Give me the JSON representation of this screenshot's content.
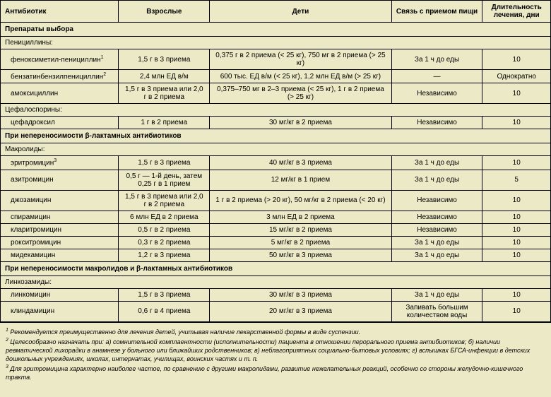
{
  "headers": {
    "antibiotic": "Антибиотик",
    "adults": "Взрослые",
    "children": "Дети",
    "food": "Связь с приемом пищи",
    "duration": "Длительность лечения, дни"
  },
  "sections": [
    {
      "title": "Препараты выбора",
      "groups": [
        {
          "name": "Пенициллины:",
          "rows": [
            {
              "name": "феноксиметил-пенициллин",
              "sup": "1",
              "adults": "1,5 г в 3 приема",
              "children": "0,375 г в 2 приема (< 25 кг), 750 мг в 2 приема (> 25 кг)",
              "food": "За 1 ч до еды",
              "duration": "10"
            },
            {
              "name": "бензатинбензилпенициллин",
              "sup": "2",
              "adults": "2,4 млн ЕД в/м",
              "children": "600 тыс. ЕД в/м (< 25 кг), 1,2 млн ЕД в/м (> 25 кг)",
              "food": "—",
              "duration": "Однократно"
            },
            {
              "name": "амоксициллин",
              "sup": "",
              "adults": "1,5 г в 3 приема или 2,0 г в 2 приема",
              "children": "0,375–750 мг в 2–3 приема (< 25 кг), 1 г в 2 приема (> 25 кг)",
              "food": "Независимо",
              "duration": "10"
            }
          ]
        },
        {
          "name": "Цефалоспорины:",
          "rows": [
            {
              "name": "цефадроксил",
              "sup": "",
              "adults": "1 г в 2 приема",
              "children": "30 мг/кг в 2 приема",
              "food": "Независимо",
              "duration": "10"
            }
          ]
        }
      ]
    },
    {
      "title": "При непереносимости β-лактамных антибиотиков",
      "groups": [
        {
          "name": "Макролиды:",
          "rows": [
            {
              "name": "эритромицин",
              "sup": "3",
              "adults": "1,5 г в 3 приема",
              "children": "40 мг/кг в 3 приема",
              "food": "За 1 ч до еды",
              "duration": "10"
            },
            {
              "name": "азитромицин",
              "sup": "",
              "adults": "0,5 г — 1-й день, затем 0,25 г в 1 прием",
              "children": "12 мг/кг в 1 прием",
              "food": "За 1 ч до еды",
              "duration": "5"
            },
            {
              "name": "джозамицин",
              "sup": "",
              "adults": "1,5 г в 3 приема или 2,0 г в 2 приема",
              "children": "1 г в 2 приема (> 20 кг), 50 мг/кг в 2 приема (< 20 кг)",
              "food": "Независимо",
              "duration": "10"
            },
            {
              "name": "спирамицин",
              "sup": "",
              "adults": "6 млн ЕД в 2 приема",
              "children": "3 млн ЕД в 2 приема",
              "food": "Независимо",
              "duration": "10"
            },
            {
              "name": "кларитромицин",
              "sup": "",
              "adults": "0,5 г в 2 приема",
              "children": "15 мг/кг в 2 приема",
              "food": "Независимо",
              "duration": "10"
            },
            {
              "name": "рокситромицин",
              "sup": "",
              "adults": "0,3 г в 2 приема",
              "children": "5 мг/кг в 2 приема",
              "food": "За 1 ч до еды",
              "duration": "10"
            },
            {
              "name": "мидекамицин",
              "sup": "",
              "adults": "1,2 г в 3 приема",
              "children": "50 мг/кг в 3 приема",
              "food": "За 1 ч до еды",
              "duration": "10"
            }
          ]
        }
      ]
    },
    {
      "title": "При непереносимости макролидов и β-лактамных антибиотиков",
      "groups": [
        {
          "name": "Линкозамиды:",
          "rows": [
            {
              "name": "линкомицин",
              "sup": "",
              "adults": "1,5 г в 3 приема",
              "children": "30 мг/кг в 3 приема",
              "food": "За 1 ч до еды",
              "duration": "10"
            },
            {
              "name": "клиндамицин",
              "sup": "",
              "adults": "0,6 г в 4 приема",
              "children": "20 мг/кг в 3 приема",
              "food": "Запивать большим количеством воды",
              "duration": "10"
            }
          ]
        }
      ]
    }
  ],
  "footnotes": [
    {
      "num": "1",
      "text": "Рекомендуется преимущественно для лечения детей, учитывая наличие лекарственной формы в виде суспензии."
    },
    {
      "num": "2",
      "text": "Целесообразно назначать при: а) сомнительной комплаентности (исполнительности) пациента в отношении перорального приема антибиотиков; б) наличии ревматической лихорадки в анамнезе у больного или ближайших родственников; в) неблагоприятных социально-бытовых условиях; г) вспышках БГСА-инфекции в детских дошкольных учреждениях, школах, интернатах, училищах, воинских частях и т. п."
    },
    {
      "num": "3",
      "text": "Для эритромицина характерно наиболее частое, по сравнению с другими макролидами, развитие нежелательных реакций, особенно со стороны желудочно-кишечного тракта."
    }
  ]
}
